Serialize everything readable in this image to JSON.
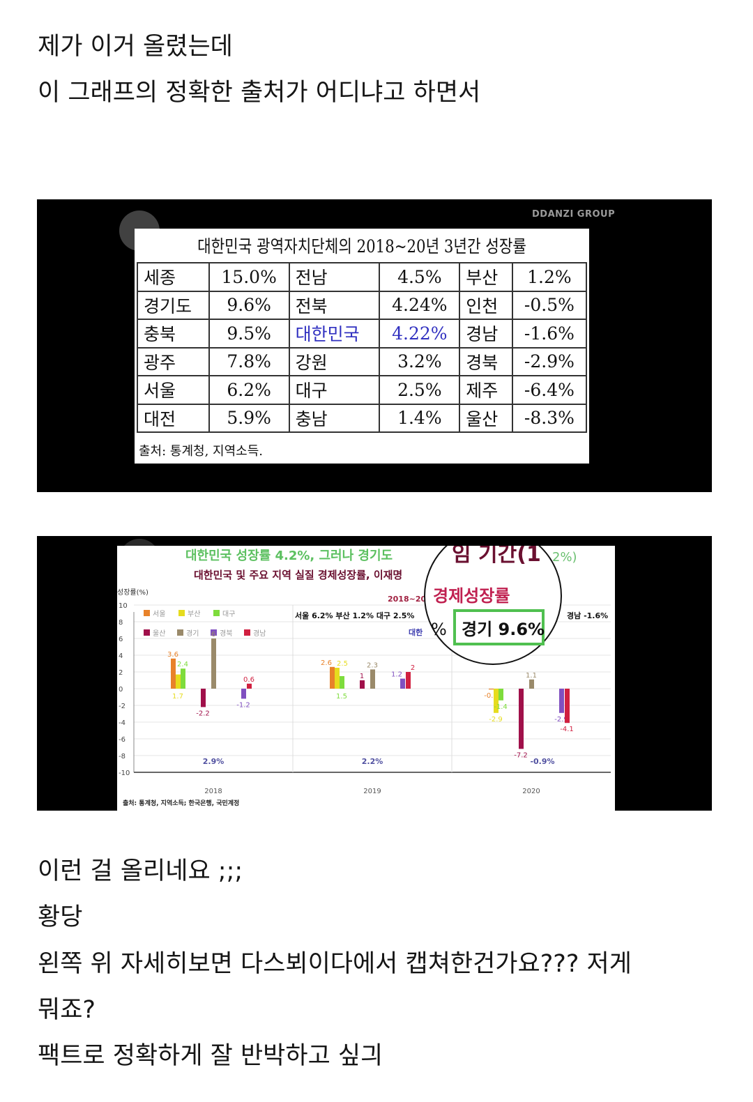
{
  "post": {
    "top_lines": [
      "제가 이거 올렸는데",
      "이 그래프의 정확한 출처가 어디냐고 하면서"
    ],
    "bottom_lines": [
      "이런 걸 올리네요 ;;;",
      "황당",
      "왼쪽 위 자세히보면 다스뵈이다에서 캡쳐한건가요??? 저게",
      "뭐죠?",
      "팩트로 정확하게 잘 반박하고 싶긔"
    ]
  },
  "image1": {
    "watermark": "DDANZI GROUP",
    "title": "대한민국 광역자치단체의 2018~20년 3년간 성장률",
    "rows": [
      [
        "세종",
        "15.0%",
        "전남",
        "4.5%",
        "부산",
        "1.2%"
      ],
      [
        "경기도",
        "9.6%",
        "전북",
        "4.24%",
        "인천",
        "-0.5%"
      ],
      [
        "충북",
        "9.5%",
        "대한민국",
        "4.22%",
        "경남",
        "-1.6%"
      ],
      [
        "광주",
        "7.8%",
        "강원",
        "3.2%",
        "경북",
        "-2.9%"
      ],
      [
        "서울",
        "6.2%",
        "대구",
        "2.5%",
        "제주",
        "-6.4%"
      ],
      [
        "대전",
        "5.9%",
        "충남",
        "1.4%",
        "울산",
        "-8.3%"
      ]
    ],
    "highlight_color": "#3030c0",
    "source": "출처: 통계청, 지역소득."
  },
  "image2": {
    "headline": "대한민국 성장률  4.2%, 그러나 경기도",
    "subtitle": "대한민국 및 주요 지역 실질 경제성장률, 이재명",
    "period": "2018~20",
    "summary": "서울 6.2%  부산 1.2%  대구 2.5%",
    "korea_partial": "대한",
    "gyeongnam": "경남 -1.6%",
    "magnifier": {
      "top": "임 기간(1",
      "top_right": "2%)",
      "label": "경제성장률",
      "percent": "%",
      "box": "경기 9.6%"
    },
    "source": "출처: 통계청, 지역소득; 한국은행, 국민계정"
  },
  "chart_data": {
    "type": "bar",
    "ylabel": "성장률(%)",
    "ylim": [
      -10,
      10
    ],
    "yticks": [
      10,
      8,
      6,
      4,
      2,
      0,
      -2,
      -4,
      -6,
      -8,
      -10
    ],
    "grid": true,
    "legend_placement": "top-left",
    "categories": [
      "2018",
      "2019",
      "2020"
    ],
    "series": [
      {
        "name": "서울",
        "color": "#e8822a",
        "values": [
          3.6,
          2.6,
          -0.1
        ]
      },
      {
        "name": "부산",
        "color": "#e6dc1e",
        "values": [
          1.7,
          2.5,
          -2.9
        ]
      },
      {
        "name": "대구",
        "color": "#7edc3c",
        "values": [
          2.4,
          1.5,
          -1.4
        ]
      },
      {
        "name": "울산",
        "color": "#a0104a",
        "values": [
          -2.2,
          1.0,
          -7.2
        ]
      },
      {
        "name": "경기",
        "color": "#9a8a6a",
        "values": [
          6.0,
          2.3,
          1.1
        ]
      },
      {
        "name": "경북",
        "color": "#8050c0",
        "values": [
          -1.2,
          1.2,
          -2.9
        ]
      },
      {
        "name": "경남",
        "color": "#d02040",
        "values": [
          0.6,
          2.0,
          -4.1
        ]
      }
    ],
    "korea_labels": [
      "2.9%",
      "2.2%",
      "-0.9%"
    ]
  }
}
